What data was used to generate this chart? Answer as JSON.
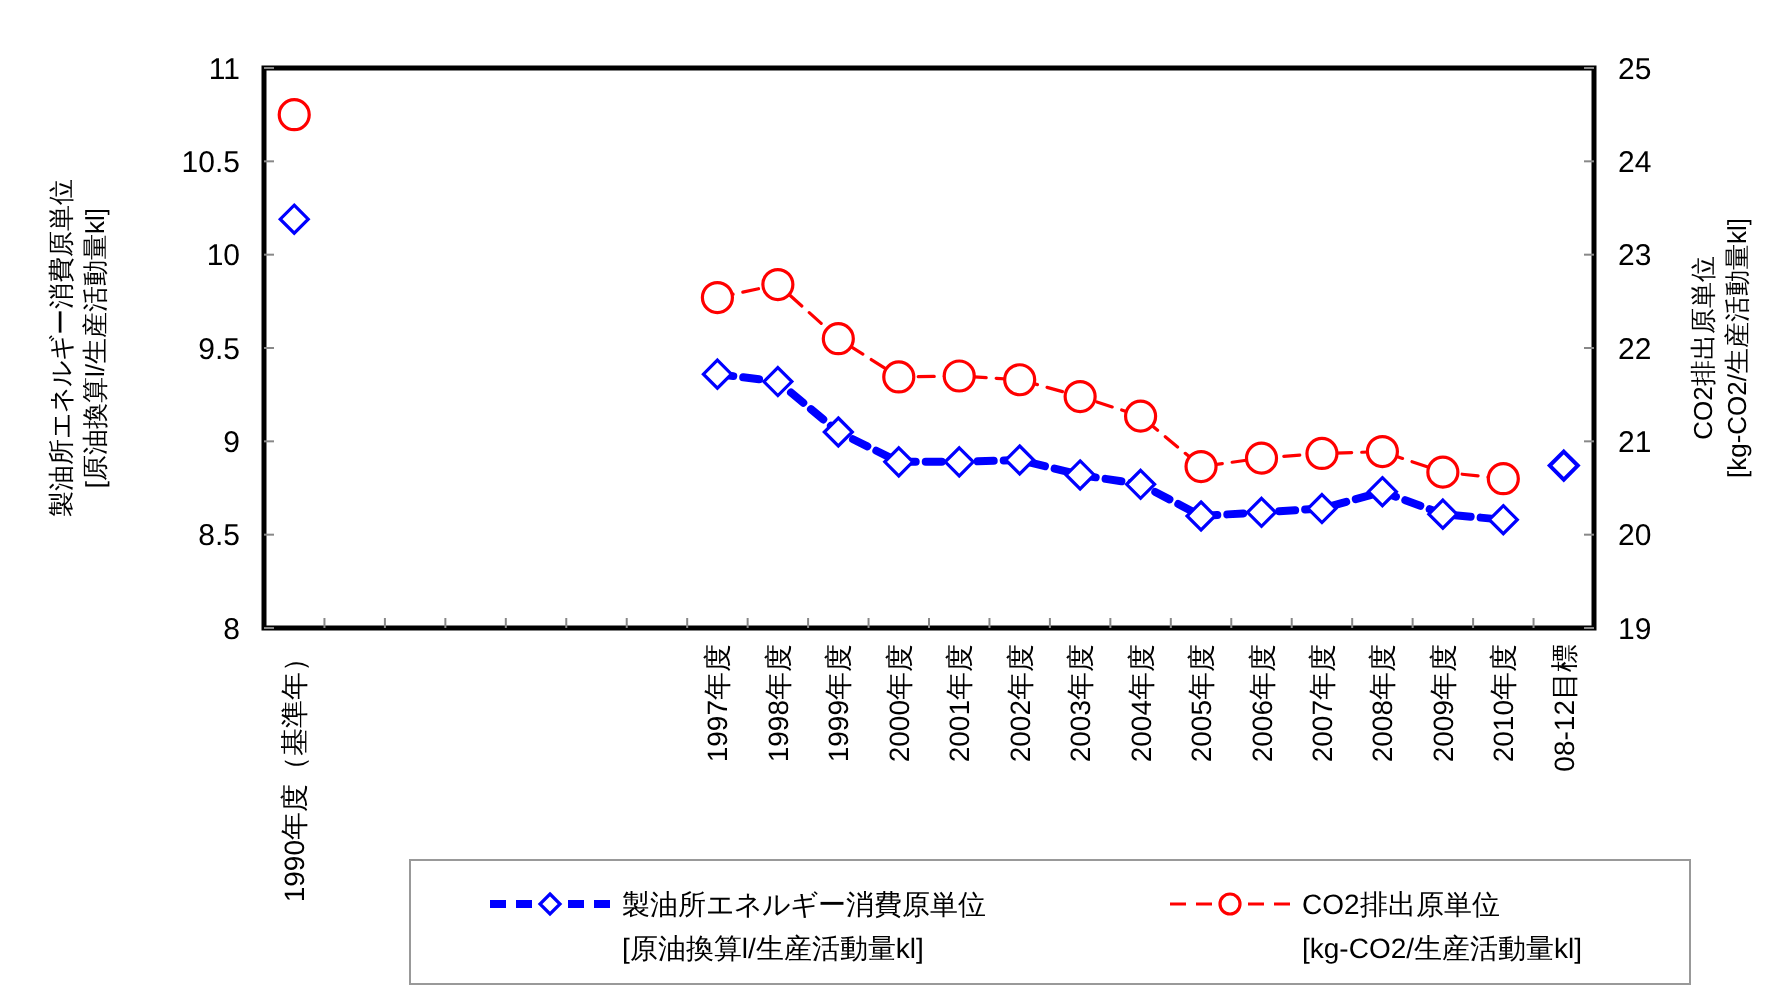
{
  "chart_data": {
    "type": "line",
    "categories": [
      "1990年度（基準年）",
      null,
      null,
      null,
      null,
      null,
      null,
      "1997年度",
      "1998年度",
      "1999年度",
      "2000年度",
      "2001年度",
      "2002年度",
      "2003年度",
      "2004年度",
      "2005年度",
      "2006年度",
      "2007年度",
      "2008年度",
      "2009年度",
      "2010年度",
      "08-12目標"
    ],
    "series": [
      {
        "name": "製油所エネルギー消費原単位\n[原油換算l/生産活動量kl]",
        "color": "#0000ff",
        "marker": "diamond",
        "line_style": "dashed",
        "values": [
          10.19,
          null,
          null,
          null,
          null,
          null,
          null,
          9.36,
          9.32,
          9.05,
          8.89,
          8.89,
          8.9,
          8.82,
          8.77,
          8.6,
          8.62,
          8.64,
          8.73,
          8.61,
          8.58,
          null
        ]
      },
      {
        "type": "scatter",
        "color": "#0000ff",
        "marker": "diamond",
        "values": [
          null,
          null,
          null,
          null,
          null,
          null,
          null,
          null,
          null,
          null,
          null,
          null,
          null,
          null,
          null,
          null,
          null,
          null,
          null,
          null,
          null,
          8.87
        ]
      },
      {
        "name": "CO2排出原単位\n[kg-CO2/生産活動量kl]",
        "color": "#ff0000",
        "marker": "circle",
        "line_style": "dashed",
        "axis": "y2",
        "values": [
          24.5,
          null,
          null,
          null,
          null,
          null,
          null,
          22.54,
          22.68,
          22.1,
          21.69,
          21.7,
          21.66,
          21.48,
          21.27,
          20.73,
          20.82,
          20.87,
          20.89,
          20.67,
          20.6,
          null
        ]
      }
    ],
    "ylabel": "製油所エネルギー消費原単位\n[原油換算l/生産活動量kl]",
    "y2label": "CO2排出原単位\n[kg-CO2/生産活動量kl]",
    "ylim": [
      8,
      11
    ],
    "yticks": [
      8,
      8.5,
      9,
      9.5,
      10,
      10.5,
      11
    ],
    "y2lim": [
      19,
      25
    ],
    "y2ticks": [
      19,
      20,
      21,
      22,
      23,
      24,
      25
    ],
    "grid": false,
    "legend": "bottom"
  }
}
